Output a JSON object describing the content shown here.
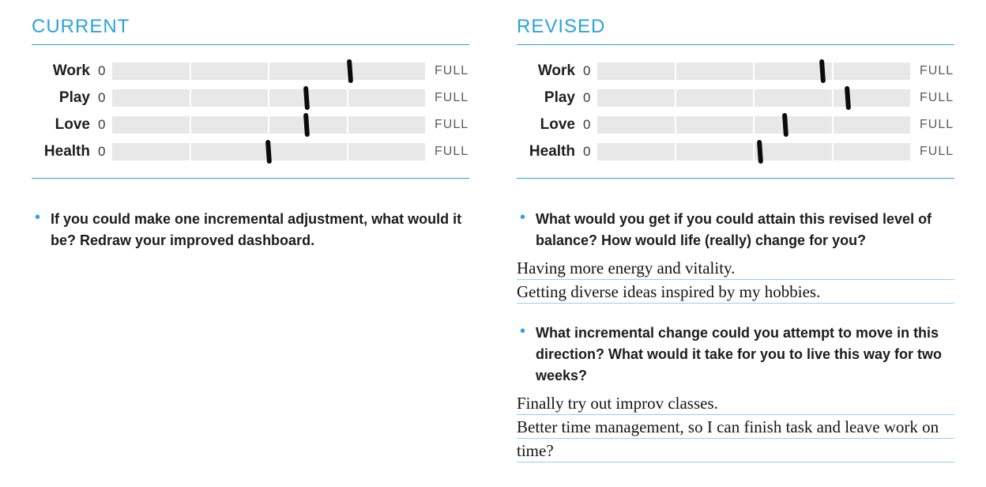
{
  "colors": {
    "accent": "#2aa3de",
    "bar_bg": "#e8e8e8",
    "mark": "#0b0b0b",
    "text": "#1e1e1e",
    "full_text": "#5b5b5b",
    "underline": "#8fd3f0",
    "background": "#ffffff"
  },
  "gauge": {
    "segments": 4,
    "zero_label": "0",
    "full_label": "FULL"
  },
  "current": {
    "title": "CURRENT",
    "rows": [
      {
        "label": "Work",
        "value_pct": 76
      },
      {
        "label": "Play",
        "value_pct": 62
      },
      {
        "label": "Love",
        "value_pct": 62
      },
      {
        "label": "Health",
        "value_pct": 50
      }
    ],
    "prompts": [
      {
        "text": "If you could make one incremental adjustment, what would it be? Redraw your improved dashboard.",
        "answer_lines": []
      }
    ]
  },
  "revised": {
    "title": "REVISED",
    "rows": [
      {
        "label": "Work",
        "value_pct": 72
      },
      {
        "label": "Play",
        "value_pct": 80
      },
      {
        "label": "Love",
        "value_pct": 60
      },
      {
        "label": "Health",
        "value_pct": 52
      }
    ],
    "prompts": [
      {
        "text": "What would you get if you could attain this revised level of balance? How would life (really) change for you?",
        "answer_lines": [
          "Having more energy and vitality.",
          "Getting diverse ideas inspired by my hobbies."
        ]
      },
      {
        "text": "What incremental change could you attempt to move in this direction? What would it take for you to live this way for two weeks?",
        "answer_lines": [
          "Finally try out improv classes.",
          "Better time management, so I can finish task and leave work on time?"
        ]
      }
    ]
  }
}
